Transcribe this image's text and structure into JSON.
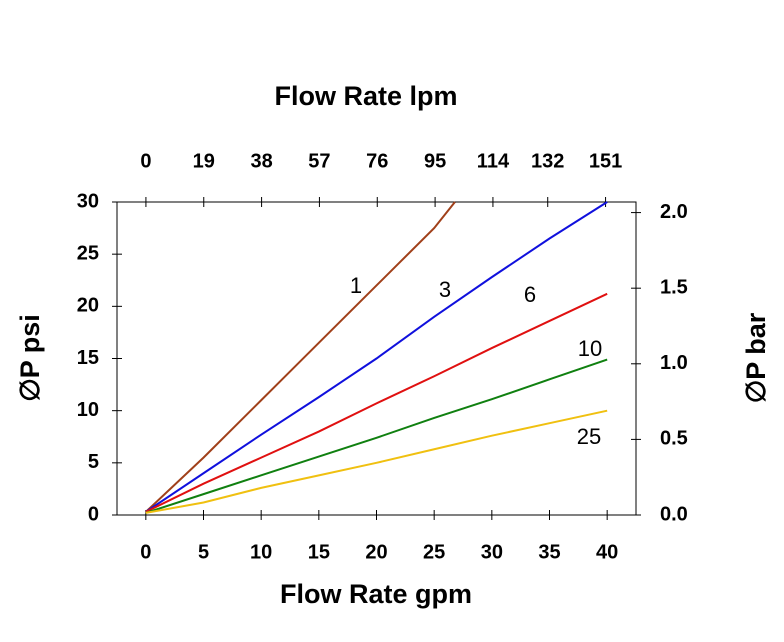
{
  "chart_data": {
    "type": "line",
    "x_title": "Flow Rate gpm",
    "x2_title": "Flow Rate lpm",
    "y_title": "∅P psi",
    "y2_title": "∅P bar",
    "xlim": [
      -2.5,
      42.5
    ],
    "xticks": [
      0,
      5,
      10,
      15,
      20,
      25,
      30,
      35,
      40
    ],
    "x2lim": [
      -9.5,
      161
    ],
    "x2ticks": [
      0,
      19,
      38,
      57,
      76,
      95,
      114,
      132,
      151
    ],
    "ylim": [
      0,
      30
    ],
    "yticks": [
      0,
      5,
      10,
      15,
      20,
      25,
      30
    ],
    "y2lim": [
      0,
      2.07
    ],
    "y2ticks": [
      {
        "value": 0,
        "label": "0.0"
      },
      {
        "value": 0.5,
        "label": "0.5"
      },
      {
        "value": 1,
        "label": "1.0"
      },
      {
        "value": 1.5,
        "label": "1.5"
      },
      {
        "value": 2,
        "label": "2.0"
      }
    ],
    "series": [
      {
        "name": "1",
        "color": "#a0401a",
        "x": [
          0,
          5,
          10,
          15,
          20,
          25,
          26.8
        ],
        "values": [
          0.3,
          5.5,
          11,
          16.5,
          22,
          27.5,
          30
        ]
      },
      {
        "name": "3",
        "color": "#1010dd",
        "x": [
          0,
          5,
          10,
          15,
          20,
          25,
          30,
          35,
          40
        ],
        "values": [
          0.3,
          4,
          7.7,
          11.3,
          15,
          19,
          22.8,
          26.5,
          30
        ]
      },
      {
        "name": "6",
        "color": "#e01010",
        "x": [
          0,
          5,
          10,
          15,
          20,
          25,
          30,
          35,
          40
        ],
        "values": [
          0.3,
          3,
          5.5,
          8,
          10.7,
          13.3,
          16,
          18.6,
          21.2
        ]
      },
      {
        "name": "10",
        "color": "#108010",
        "x": [
          0,
          5,
          10,
          15,
          20,
          25,
          30,
          35,
          40
        ],
        "values": [
          0.2,
          2,
          3.8,
          5.6,
          7.4,
          9.3,
          11.1,
          13,
          14.9
        ]
      },
      {
        "name": "25",
        "color": "#f0c010",
        "x": [
          0,
          5,
          10,
          15,
          20,
          25,
          30,
          35,
          40
        ],
        "values": [
          0.2,
          1.2,
          2.6,
          3.8,
          5,
          6.3,
          7.6,
          8.8,
          10
        ]
      }
    ]
  }
}
